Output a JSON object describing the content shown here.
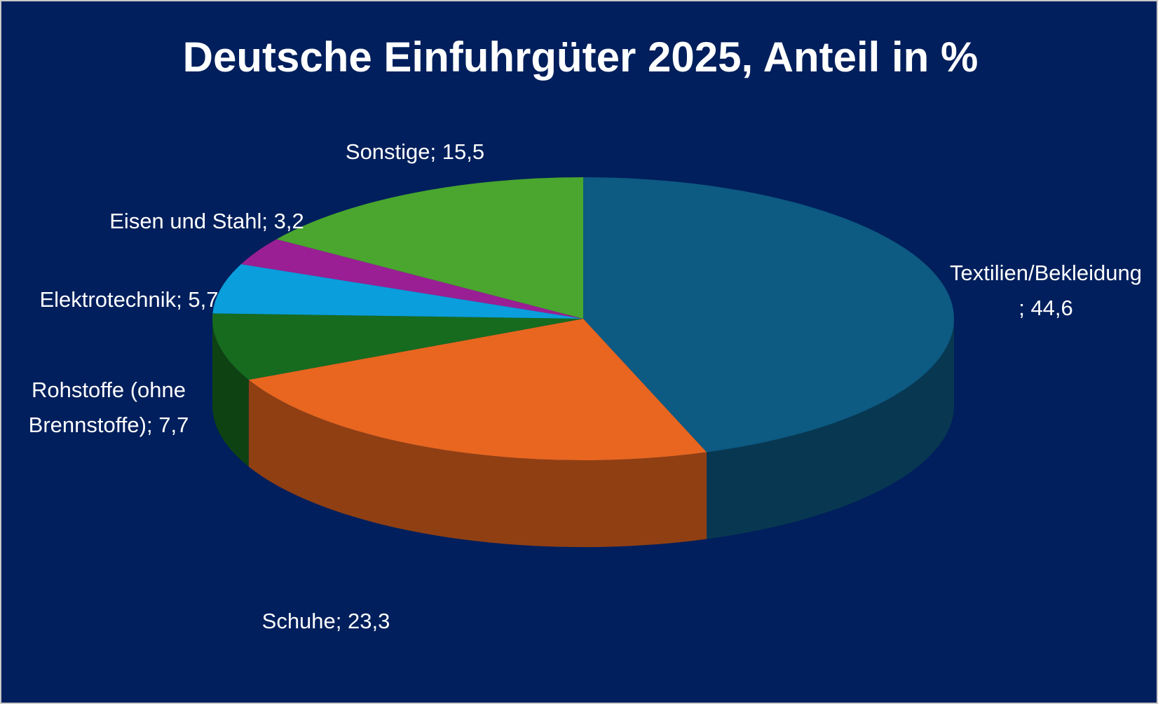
{
  "chart_data": {
    "type": "pie",
    "title": "Deutsche Einfuhrgüter 2025, Anteil in %",
    "categories": [
      "Textilien/Bekleidung",
      "Schuhe",
      "Rohstoffe (ohne Brennstoffe)",
      "Elektrotechnik",
      "Eisen und Stahl",
      "Sonstige"
    ],
    "values": [
      44.6,
      23.3,
      7.7,
      5.7,
      3.2,
      15.5
    ],
    "value_labels": [
      "44,6",
      "23,3",
      "7,7",
      "5,7",
      "3,2",
      "15,5"
    ],
    "label_separator": "; ",
    "colors": [
      "#0d5a82",
      "#e8661f",
      "#176b1e",
      "#0a9edc",
      "#9b1f94",
      "#4aa62e"
    ],
    "three_d": true
  }
}
